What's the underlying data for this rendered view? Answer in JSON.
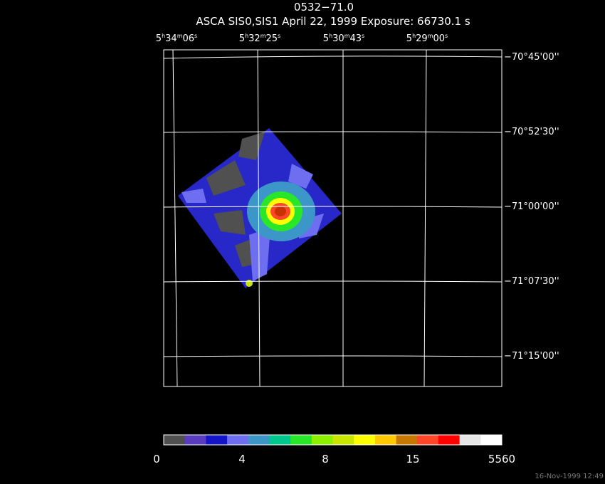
{
  "header": {
    "title": "0532−71.0",
    "subtitle": "ASCA SIS0,SIS1 April 22, 1999 Exposure: 66730.1 s"
  },
  "ra_labels": [
    [
      "5",
      "h",
      "34",
      "m",
      "06",
      "s"
    ],
    [
      "5",
      "h",
      "32",
      "m",
      "25",
      "s"
    ],
    [
      "5",
      "h",
      "30",
      "m",
      "43",
      "s"
    ],
    [
      "5",
      "h",
      "29",
      "m",
      "00",
      "s"
    ]
  ],
  "dec_labels": [
    "−70°45'00''",
    "−70°52'30''",
    "−71°00'00''",
    "−71°07'30''",
    "−71°15'00''"
  ],
  "colorbar": {
    "colors": [
      "#505050",
      "#5a3cc0",
      "#1414c8",
      "#6e6ef0",
      "#3c96c8",
      "#00c88c",
      "#28e628",
      "#8cf000",
      "#c8e600",
      "#ffff00",
      "#ffc800",
      "#c87800",
      "#ff4628",
      "#ff0000",
      "#e6e6e6",
      "#ffffff"
    ],
    "labels": [
      "0",
      "4",
      "8",
      "15",
      "5560"
    ]
  },
  "footer": {
    "timestamp": "16-Nov-1999 12:49"
  }
}
